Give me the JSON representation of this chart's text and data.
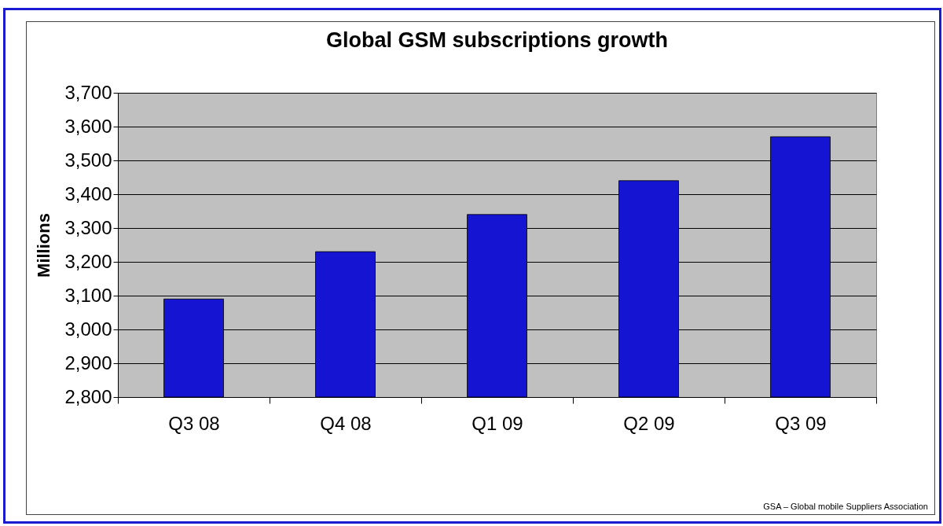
{
  "chart_data": {
    "type": "bar",
    "title": "Global GSM subscriptions growth",
    "ylabel": "Millions",
    "categories": [
      "Q3 08",
      "Q4 08",
      "Q1 09",
      "Q2 09",
      "Q3 09"
    ],
    "values": [
      3090,
      3230,
      3340,
      3440,
      3570
    ],
    "color": "#1414d2",
    "ylim": [
      2800,
      3700
    ],
    "yticks": [
      {
        "value": 2800,
        "label": "2,800"
      },
      {
        "value": 2900,
        "label": "2,900"
      },
      {
        "value": 3000,
        "label": "3,000"
      },
      {
        "value": 3100,
        "label": "3,100"
      },
      {
        "value": 3200,
        "label": "3,200"
      },
      {
        "value": 3300,
        "label": "3,300"
      },
      {
        "value": 3400,
        "label": "3,400"
      },
      {
        "value": 3500,
        "label": "3,500"
      },
      {
        "value": 3600,
        "label": "3,600"
      },
      {
        "value": 3700,
        "label": "3,700"
      }
    ],
    "grid": "y",
    "annotations": [
      "GSA – Global mobile Suppliers Association"
    ]
  }
}
